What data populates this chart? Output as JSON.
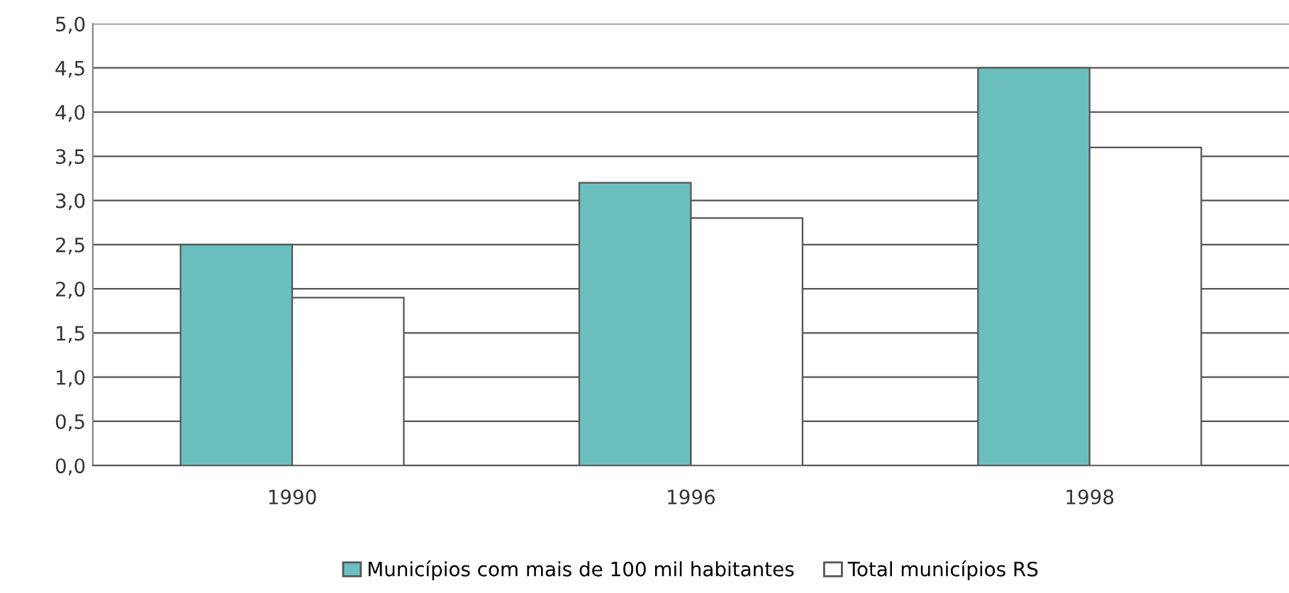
{
  "chart_data": {
    "type": "bar",
    "categories": [
      "1990",
      "1996",
      "1998"
    ],
    "series": [
      {
        "name": "Municípios com mais de 100 mil habitantes",
        "color": "#6cbfbf",
        "values": [
          2.5,
          3.2,
          4.5
        ]
      },
      {
        "name": "Total municípios RS",
        "color": "#ffffff",
        "values": [
          1.9,
          2.8,
          3.6
        ]
      }
    ],
    "ylim": [
      0,
      5
    ],
    "yticks": [
      {
        "value": 0,
        "label": "0,0"
      },
      {
        "value": 0.5,
        "label": "0,5"
      },
      {
        "value": 1,
        "label": "1,0"
      },
      {
        "value": 1.5,
        "label": "1,5"
      },
      {
        "value": 2,
        "label": "2,0"
      },
      {
        "value": 2.5,
        "label": "2,5"
      },
      {
        "value": 3,
        "label": "3,0"
      },
      {
        "value": 3.5,
        "label": "3,5"
      },
      {
        "value": 4,
        "label": "4,0"
      },
      {
        "value": 4.5,
        "label": "4,5"
      },
      {
        "value": 5,
        "label": "5,0"
      }
    ],
    "grid": "y",
    "legend": "bottom"
  }
}
